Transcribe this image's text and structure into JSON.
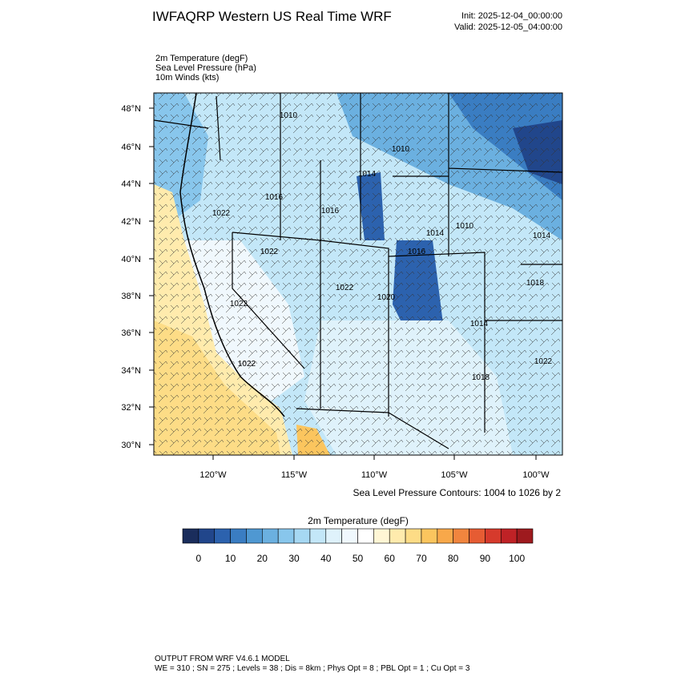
{
  "header": {
    "title": "IWFAQRP Western US Real Time WRF",
    "init": "Init: 2025-12-04_00:00:00",
    "valid": "Valid: 2025-12-05_04:00:00"
  },
  "fields": [
    "2m Temperature   (degF)",
    "Sea Level Pressure   (hPa)",
    "10m Winds   (kts)"
  ],
  "map": {
    "lat_labels": [
      "48°N",
      "46°N",
      "44°N",
      "42°N",
      "40°N",
      "38°N",
      "36°N",
      "34°N",
      "32°N",
      "30°N"
    ],
    "lon_labels": [
      "120°W",
      "115°W",
      "110°W",
      "105°W",
      "100°W"
    ],
    "contour_labels": [
      "1010",
      "1010",
      "1014",
      "1016",
      "1022",
      "1016",
      "1010",
      "1014",
      "1014",
      "1022",
      "1016",
      "1022",
      "1018",
      "1020",
      "1022",
      "1014",
      "1022",
      "1022",
      "1018"
    ]
  },
  "contour_note": "Sea Level Pressure Contours: 1004 to 1026 by 2",
  "colorbar": {
    "title": "2m Temperature  (degF)",
    "colors": [
      "#1a2d5c",
      "#21468b",
      "#2c62ae",
      "#3a7dc2",
      "#4f98d2",
      "#6bb0e0",
      "#88c6ec",
      "#a6d8f3",
      "#c3e7f8",
      "#dff2fb",
      "#f0f8fd",
      "#ffffff",
      "#fff6d5",
      "#ffebad",
      "#fddc86",
      "#fbc55e",
      "#f8a84a",
      "#f1853e",
      "#e65c33",
      "#d63a2c",
      "#bf2226",
      "#9e1a1e"
    ],
    "ticks": [
      0,
      10,
      20,
      30,
      40,
      50,
      60,
      70,
      80,
      90,
      100
    ]
  },
  "footer": {
    "line1": "OUTPUT FROM WRF V4.6.1 MODEL",
    "line2": "WE = 310 ; SN = 275 ; Levels = 38 ; Dis = 8km ; Phys Opt = 8 ; PBL Opt = 1 ; Cu Opt = 3"
  }
}
